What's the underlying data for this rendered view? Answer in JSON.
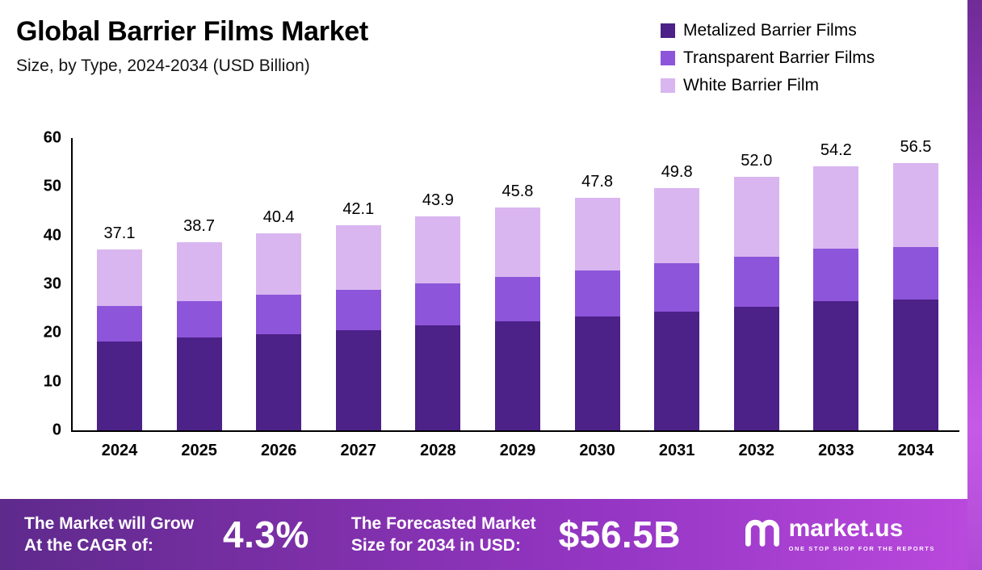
{
  "chart_data": {
    "type": "bar",
    "stacked": true,
    "title": "Global Barrier Films Market",
    "subtitle": "Size, by Type, 2024-2034 (USD Billion)",
    "categories": [
      "2024",
      "2025",
      "2026",
      "2027",
      "2028",
      "2029",
      "2030",
      "2031",
      "2032",
      "2033",
      "2034"
    ],
    "series": [
      {
        "name": "Metalized Barrier Films",
        "color": "#4c2188",
        "values": [
          18.2,
          19.0,
          19.8,
          20.6,
          21.5,
          22.4,
          23.4,
          24.4,
          25.4,
          26.5,
          27.6
        ]
      },
      {
        "name": "Transparent Barrier Films",
        "color": "#8d55da",
        "values": [
          7.3,
          7.6,
          8.0,
          8.3,
          8.7,
          9.1,
          9.5,
          9.9,
          10.3,
          10.8,
          11.2
        ]
      },
      {
        "name": "White Barrier Film",
        "color": "#d9b6f0",
        "values": [
          11.6,
          12.1,
          12.6,
          13.2,
          13.7,
          14.3,
          14.9,
          15.5,
          16.3,
          16.9,
          17.7
        ]
      }
    ],
    "totals_labels": [
      "37.1",
      "38.7",
      "40.4",
      "42.1",
      "43.9",
      "45.8",
      "47.8",
      "49.8",
      "52.0",
      "54.2",
      "56.5"
    ],
    "y_ticks": [
      0,
      10,
      20,
      30,
      40,
      50,
      60
    ],
    "ylim": [
      0,
      60
    ],
    "grid": false,
    "legend_position": "top-right"
  },
  "footer": {
    "cagr_label_line1": "The Market will Grow",
    "cagr_label_line2": "At the CAGR of:",
    "cagr_value": "4.3%",
    "forecast_label_line1": "The Forecasted Market",
    "forecast_label_line2": "Size for 2034 in USD:",
    "forecast_value": "$56.5B",
    "brand_name": "market.us",
    "brand_tagline": "ONE STOP SHOP FOR THE REPORTS"
  }
}
